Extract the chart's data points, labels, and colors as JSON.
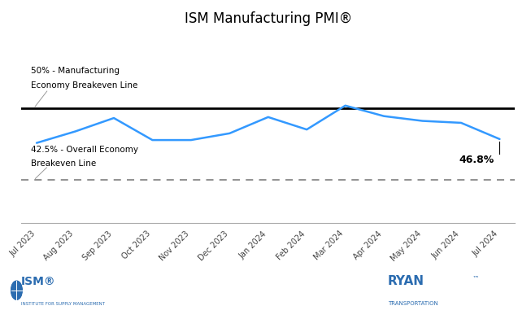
{
  "title": "ISM Manufacturing PMI®",
  "months": [
    "Jul 2023",
    "Aug 2023",
    "Sep 2023",
    "Oct 2023",
    "Nov 2023",
    "Dec 2023",
    "Jan 2024",
    "Feb 2024",
    "Mar 2024",
    "Apr 2024",
    "May 2024",
    "Jun 2024",
    "Jul 2024"
  ],
  "pmi_values": [
    46.4,
    47.6,
    49.0,
    46.7,
    46.7,
    47.4,
    49.1,
    47.8,
    50.3,
    49.2,
    48.7,
    48.5,
    46.8
  ],
  "line_50_label_line1": "50% - Manufacturing",
  "line_50_label_line2": "Economy Breakeven Line",
  "line_42_label_line1": "42.5% - Overall Economy",
  "line_42_label_line2": "Breakeven Line",
  "last_value_label": "46.8%",
  "breakeven_50": 50.0,
  "breakeven_42": 42.5,
  "ylim_min": 38.0,
  "ylim_max": 58.0,
  "line_color": "#3399ff",
  "solid_line_color": "#000000",
  "dashed_line_color": "#888888",
  "background_color": "#ffffff",
  "title_fontsize": 12,
  "label_fontsize": 8
}
